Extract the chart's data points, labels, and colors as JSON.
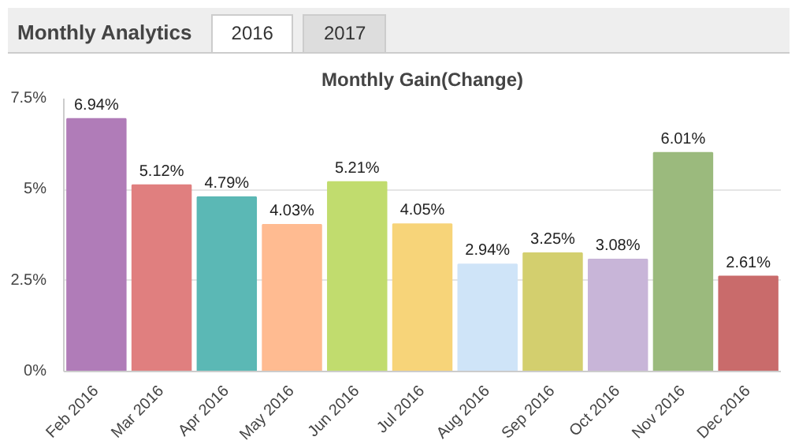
{
  "chart_data": {
    "type": "bar",
    "title": "Monthly Analytics",
    "subtitle": "Monthly Gain(Change)",
    "annotations": [
      "2016",
      "2017"
    ],
    "categories": [
      "Feb 2016",
      "Mar 2016",
      "Apr 2016",
      "May 2016",
      "Jun 2016",
      "Jul 2016",
      "Aug 2016",
      "Sep 2016",
      "Oct 2016",
      "Nov 2016",
      "Dec 2016"
    ],
    "values": [
      6.94,
      5.12,
      4.79,
      4.03,
      5.21,
      4.05,
      2.94,
      3.25,
      3.08,
      6.01,
      2.61
    ],
    "value_labels": [
      "6.94%",
      "5.12%",
      "4.79%",
      "4.03%",
      "5.21%",
      "4.05%",
      "2.94%",
      "3.25%",
      "3.08%",
      "6.01%",
      "2.61%"
    ],
    "colors": [
      "#b07cb8",
      "#e07f7f",
      "#5bb8b5",
      "#ffbb91",
      "#c1dc6e",
      "#f7d479",
      "#cfe4f8",
      "#d3cf6e",
      "#c8b5d8",
      "#9bba7d",
      "#c96b6b"
    ],
    "ylim": [
      0,
      7.5
    ],
    "yticks": [
      {
        "value": 0,
        "label": "0%"
      },
      {
        "value": 2.5,
        "label": "2.5%"
      },
      {
        "value": 5,
        "label": "5%"
      },
      {
        "value": 7.5,
        "label": "7.5%"
      }
    ],
    "grid": "y"
  }
}
